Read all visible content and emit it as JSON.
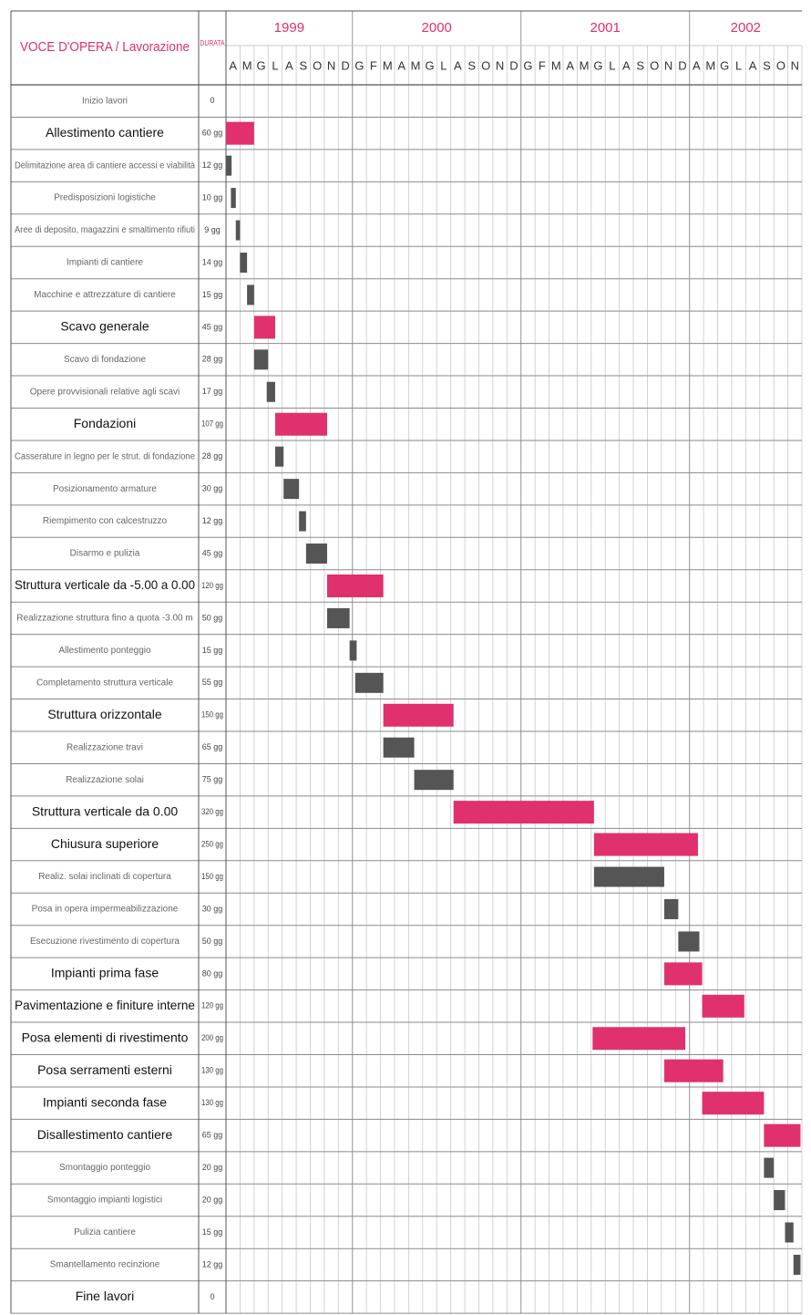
{
  "header": {
    "task_col": "VOCE D'OPERA / Lavorazione",
    "dur_col": "DURATA"
  },
  "colors": {
    "main_bar": "#e0306e",
    "sub_bar": "#555555",
    "accent_text": "#e0306e",
    "grid": "#c8c8c8",
    "border": "#555555"
  },
  "chart_data": {
    "type": "gantt",
    "years": [
      {
        "label": "1999",
        "start_col": 0,
        "span": 9
      },
      {
        "label": "2000",
        "start_col": 9,
        "span": 12
      },
      {
        "label": "2001",
        "start_col": 21,
        "span": 12
      },
      {
        "label": "2002",
        "start_col": 33,
        "span": 8
      }
    ],
    "months": [
      "A",
      "M",
      "G",
      "L",
      "A",
      "S",
      "O",
      "N",
      "D",
      "G",
      "F",
      "M",
      "A",
      "M",
      "G",
      "L",
      "A",
      "S",
      "O",
      "N",
      "D",
      "G",
      "F",
      "M",
      "A",
      "M",
      "G",
      "L",
      "A",
      "S",
      "O",
      "N",
      "D",
      "A",
      "M",
      "G",
      "L",
      "A",
      "S",
      "O",
      "N"
    ],
    "tasks": [
      {
        "label": "Inizio lavori",
        "dur": "0",
        "main": false,
        "start": null,
        "end": null
      },
      {
        "label": "Allestimento cantiere",
        "dur": "60 gg",
        "main": true,
        "start": 0.0,
        "end": 2.0
      },
      {
        "label": "Delimitazione area di cantiere accessi e viabilità",
        "dur": "12 gg",
        "main": false,
        "start": 0.0,
        "end": 0.4
      },
      {
        "label": "Predisposizioni logistiche",
        "dur": "10 gg",
        "main": false,
        "start": 0.35,
        "end": 0.7
      },
      {
        "label": "Aree di deposito, magazzini e smaltimento rifiuti",
        "dur": "9 gg",
        "main": false,
        "start": 0.7,
        "end": 1.0
      },
      {
        "label": "Impianti di cantiere",
        "dur": "14 gg",
        "main": false,
        "start": 1.0,
        "end": 1.5
      },
      {
        "label": "Macchine e attrezzature di cantiere",
        "dur": "15 gg",
        "main": false,
        "start": 1.5,
        "end": 2.0
      },
      {
        "label": "Scavo generale",
        "dur": "45 gg",
        "main": true,
        "start": 2.0,
        "end": 3.5
      },
      {
        "label": "Scavo di fondazione",
        "dur": "28 gg",
        "main": false,
        "start": 2.0,
        "end": 3.0
      },
      {
        "label": "Opere provvisionali relative agli scavi",
        "dur": "17 gg",
        "main": false,
        "start": 2.9,
        "end": 3.5
      },
      {
        "label": "Fondazioni",
        "dur": "107 gg",
        "main": true,
        "start": 3.5,
        "end": 7.2
      },
      {
        "label": "Casserature in legno per le strut. di fondazione",
        "dur": "28 gg",
        "main": false,
        "start": 3.5,
        "end": 4.1
      },
      {
        "label": "Posizionamento armature",
        "dur": "30 gg",
        "main": false,
        "start": 4.1,
        "end": 5.2
      },
      {
        "label": "Riempimento con calcestruzzo",
        "dur": "12 gg",
        "main": false,
        "start": 5.2,
        "end": 5.7
      },
      {
        "label": "Disarmo e pulizia",
        "dur": "45 gg",
        "main": false,
        "start": 5.7,
        "end": 7.2
      },
      {
        "label": "Struttura verticale da -5.00 a 0.00",
        "dur": "120 gg",
        "main": true,
        "start": 7.2,
        "end": 11.2
      },
      {
        "label": "Realizzazione struttura fino a quota -3.00 m",
        "dur": "50 gg",
        "main": false,
        "start": 7.2,
        "end": 8.8
      },
      {
        "label": "Allestimento ponteggio",
        "dur": "15 gg",
        "main": false,
        "start": 8.8,
        "end": 9.3
      },
      {
        "label": "Completamento struttura verticale",
        "dur": "55 gg",
        "main": false,
        "start": 9.2,
        "end": 11.2
      },
      {
        "label": "Struttura orizzontale",
        "dur": "150 gg",
        "main": true,
        "start": 11.2,
        "end": 16.2
      },
      {
        "label": "Realizzazione travi",
        "dur": "65 gg",
        "main": false,
        "start": 11.2,
        "end": 13.4
      },
      {
        "label": "Realizzazione solai",
        "dur": "75 gg",
        "main": false,
        "start": 13.4,
        "end": 16.2
      },
      {
        "label": "Struttura verticale da 0.00",
        "dur": "320 gg",
        "main": true,
        "start": 16.2,
        "end": 26.2
      },
      {
        "label": "Chiusura superiore",
        "dur": "250 gg",
        "main": true,
        "start": 26.2,
        "end": 33.6
      },
      {
        "label": "Realiz. solai inclinati di copertura",
        "dur": "150 gg",
        "main": false,
        "start": 26.2,
        "end": 31.2
      },
      {
        "label": "Posa in opera impermeabilizzazione",
        "dur": "30 gg",
        "main": false,
        "start": 31.2,
        "end": 32.2
      },
      {
        "label": "Esecuzione rivestimento di copertura",
        "dur": "50 gg",
        "main": false,
        "start": 32.2,
        "end": 33.7
      },
      {
        "label": "Impianti prima fase",
        "dur": "80 gg",
        "main": true,
        "start": 31.2,
        "end": 33.9
      },
      {
        "label": "Pavimentazione e finiture interne",
        "dur": "120 gg",
        "main": true,
        "start": 33.9,
        "end": 36.9
      },
      {
        "label": "Posa elementi di rivestimento",
        "dur": "200 gg",
        "main": true,
        "start": 26.1,
        "end": 32.7
      },
      {
        "label": "Posa serramenti esterni",
        "dur": "130 gg",
        "main": true,
        "start": 31.2,
        "end": 35.4
      },
      {
        "label": "Impianti seconda fase",
        "dur": "130 gg",
        "main": true,
        "start": 33.9,
        "end": 38.3
      },
      {
        "label": "Disallestimento cantiere",
        "dur": "65 gg",
        "main": true,
        "start": 38.3,
        "end": 40.9
      },
      {
        "label": "Smontaggio ponteggio",
        "dur": "20 gg",
        "main": false,
        "start": 38.3,
        "end": 39.0
      },
      {
        "label": "Smontaggio impianti logistici",
        "dur": "20 gg",
        "main": false,
        "start": 39.0,
        "end": 39.8
      },
      {
        "label": "Pulizia cantiere",
        "dur": "15 gg",
        "main": false,
        "start": 39.8,
        "end": 40.4
      },
      {
        "label": "Smantellamento recinzione",
        "dur": "12 gg",
        "main": false,
        "start": 40.4,
        "end": 40.9
      },
      {
        "label": "Fine lavori",
        "dur": "0",
        "main": true,
        "start": null,
        "end": null
      }
    ]
  }
}
